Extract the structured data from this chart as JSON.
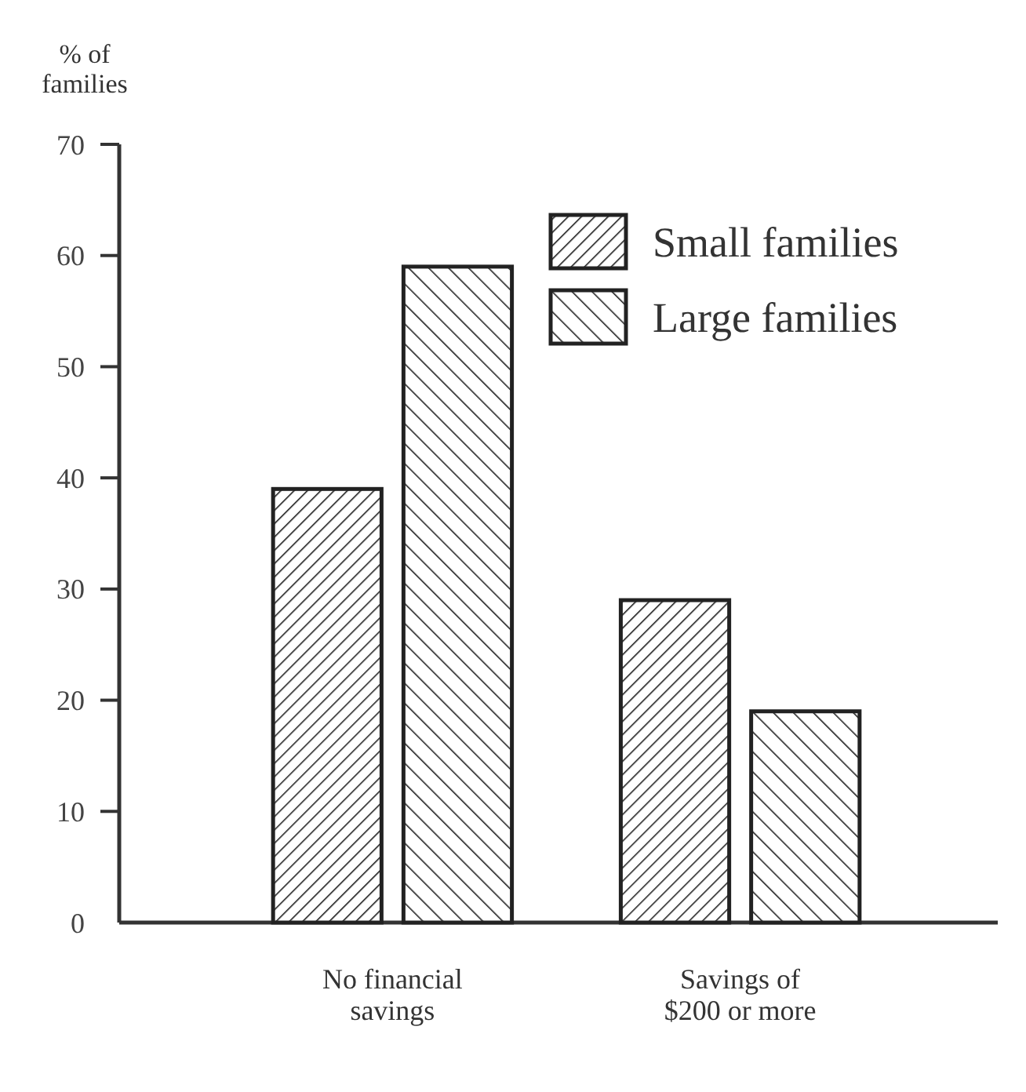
{
  "chart_data": {
    "type": "bar",
    "ylabel": "% of families",
    "categories": [
      "No financial savings",
      "Savings of $200 or more"
    ],
    "series": [
      {
        "name": "Small families",
        "color": "#222222",
        "values": [
          39,
          29
        ]
      },
      {
        "name": "Large families",
        "color": "#222222",
        "values": [
          59,
          19
        ]
      }
    ],
    "ylim": [
      0,
      70
    ],
    "yticks": [
      0,
      10,
      20,
      30,
      40,
      50,
      60,
      70
    ],
    "legend": "top right",
    "grid": false
  }
}
